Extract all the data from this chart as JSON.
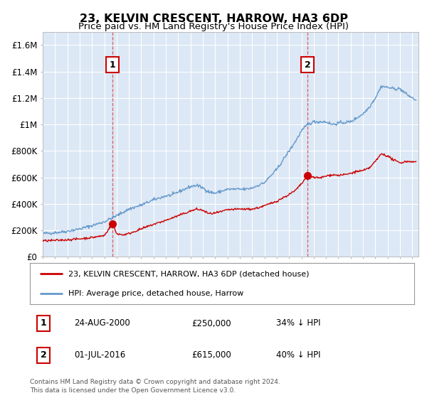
{
  "title": "23, KELVIN CRESCENT, HARROW, HA3 6DP",
  "subtitle": "Price paid vs. HM Land Registry's House Price Index (HPI)",
  "title_fontsize": 11.5,
  "subtitle_fontsize": 9.5,
  "ylim": [
    0,
    1700000
  ],
  "yticks": [
    0,
    200000,
    400000,
    600000,
    800000,
    1000000,
    1200000,
    1400000,
    1600000
  ],
  "ytick_labels": [
    "£0",
    "£200K",
    "£400K",
    "£600K",
    "£800K",
    "£1M",
    "£1.2M",
    "£1.4M",
    "£1.6M"
  ],
  "background_color": "#ffffff",
  "plot_bg_color": "#dce8f5",
  "grid_color": "#ffffff",
  "red_line_color": "#cc0000",
  "blue_line_color": "#6699cc",
  "transaction1": {
    "date_num": 2000.65,
    "price": 250000,
    "label": "1"
  },
  "transaction2": {
    "date_num": 2016.5,
    "price": 615000,
    "label": "2"
  },
  "vline_color": "#dd4444",
  "legend_label_red": "23, KELVIN CRESCENT, HARROW, HA3 6DP (detached house)",
  "legend_label_blue": "HPI: Average price, detached house, Harrow",
  "table_row1": [
    "1",
    "24-AUG-2000",
    "£250,000",
    "34% ↓ HPI"
  ],
  "table_row2": [
    "2",
    "01-JUL-2016",
    "£615,000",
    "40% ↓ HPI"
  ],
  "footer1": "Contains HM Land Registry data © Crown copyright and database right 2024.",
  "footer2": "This data is licensed under the Open Government Licence v3.0.",
  "xmin": 1995.0,
  "xmax": 2025.5
}
